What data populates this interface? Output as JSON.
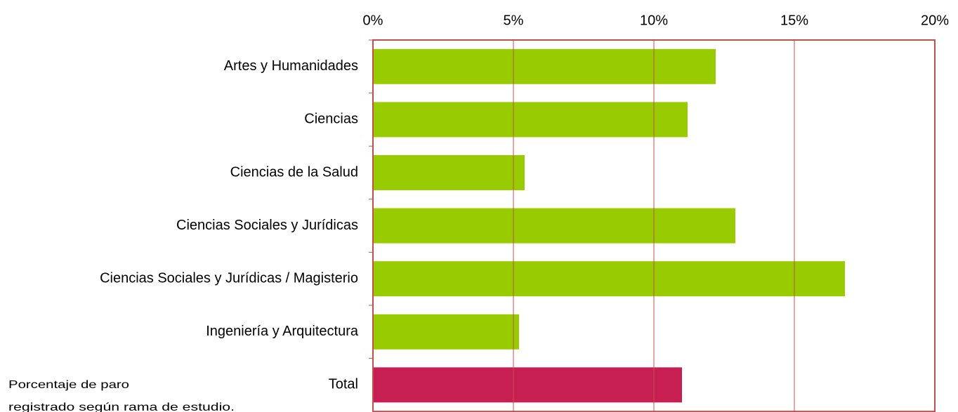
{
  "chart_data": {
    "type": "bar",
    "orientation": "horizontal",
    "categories": [
      "Artes y Humanidades",
      "Ciencias",
      "Ciencias de la Salud",
      "Ciencias Sociales y Jurídicas",
      "Ciencias Sociales y Jurídicas / Magisterio",
      "Ingeniería y Arquitectura",
      "Total"
    ],
    "values": [
      12.2,
      11.2,
      5.4,
      12.9,
      16.8,
      5.2,
      11.0
    ],
    "colors": [
      "#99cc00",
      "#99cc00",
      "#99cc00",
      "#99cc00",
      "#99cc00",
      "#99cc00",
      "#c71f52"
    ],
    "xlim": [
      0,
      20
    ],
    "xticks": [
      {
        "value": 0,
        "label": "0%"
      },
      {
        "value": 5,
        "label": "5%"
      },
      {
        "value": 10,
        "label": "10%"
      },
      {
        "value": 15,
        "label": "15%"
      },
      {
        "value": 20,
        "label": "20%"
      }
    ],
    "grid": true,
    "annotation": [
      "Porcentaje de paro",
      "registrado  según rama de estudio."
    ]
  }
}
